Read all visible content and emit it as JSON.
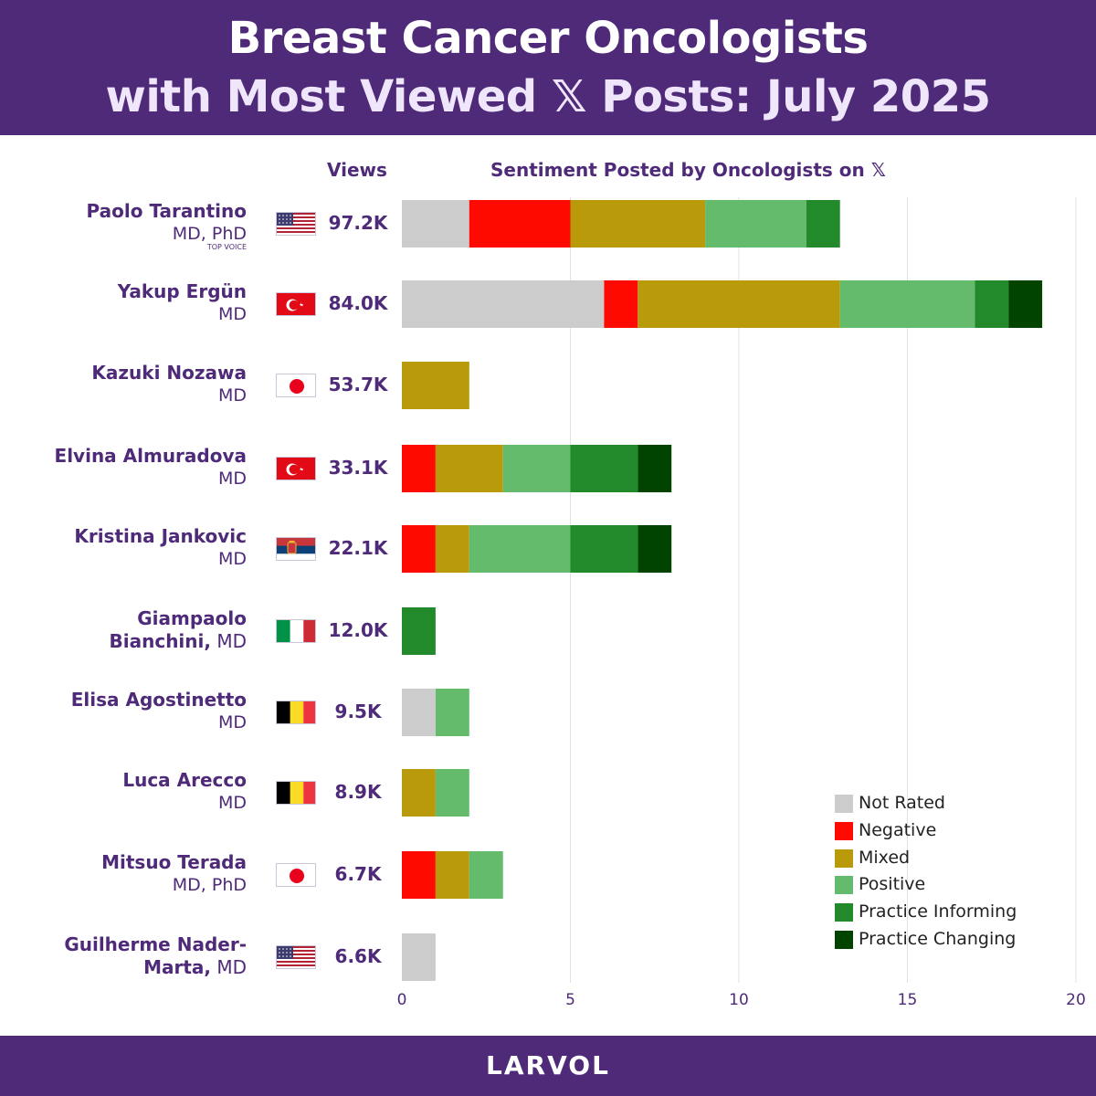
{
  "header": {
    "title_line1": "Breast Cancer Oncologists",
    "title_line2": "with Most Viewed 𝕏 Posts: July 2025"
  },
  "columns": {
    "views": "Views",
    "sentiment": "Sentiment Posted by Oncologists on 𝕏"
  },
  "rows": [
    {
      "line1": "Paolo Tarantino",
      "line2": "MD, PhD",
      "badge": "TOP VOICE",
      "flag": "usa",
      "views": "97.2K"
    },
    {
      "line1": "Yakup Ergün",
      "line2": "MD",
      "flag": "turkey",
      "views": "84.0K"
    },
    {
      "line1": "Kazuki Nozawa",
      "line2": "MD",
      "flag": "japan",
      "views": "53.7K"
    },
    {
      "line1": "Elvina Almuradova",
      "line2": "MD",
      "flag": "turkey",
      "views": "33.1K"
    },
    {
      "line1": "Kristina Jankovic",
      "line2": "MD",
      "flag": "serbia",
      "views": "22.1K"
    },
    {
      "line1": "Giampaolo",
      "line2_bold": "Bianchini,",
      "line2": " MD",
      "flag": "italy",
      "views": "12.0K"
    },
    {
      "line1": "Elisa Agostinetto",
      "line2": "MD",
      "flag": "belgium",
      "views": "9.5K"
    },
    {
      "line1": "Luca Arecco",
      "line2": "MD",
      "flag": "belgium",
      "views": "8.9K"
    },
    {
      "line1": "Mitsuo Terada",
      "line2": "MD, PhD",
      "flag": "japan",
      "views": "6.7K"
    },
    {
      "line1": "Guilherme Nader-",
      "line2_bold": "Marta,",
      "line2": " MD",
      "flag": "usa",
      "views": "6.6K"
    }
  ],
  "chart_data": {
    "type": "bar",
    "orientation": "horizontal",
    "stacked": true,
    "categories": [
      "Paolo Tarantino",
      "Yakup Ergün",
      "Kazuki Nozawa",
      "Elvina Almuradova",
      "Kristina Jankovic",
      "Giampaolo Bianchini",
      "Elisa Agostinetto",
      "Luca Arecco",
      "Mitsuo Terada",
      "Guilherme Nader-Marta"
    ],
    "series": [
      {
        "name": "Not Rated",
        "color": "#cccccc",
        "values": [
          2,
          6,
          0,
          0,
          0,
          0,
          1,
          0,
          0,
          1
        ]
      },
      {
        "name": "Negative",
        "color": "#ff0a00",
        "values": [
          3,
          1,
          0,
          1,
          1,
          0,
          0,
          0,
          1,
          0
        ]
      },
      {
        "name": "Mixed",
        "color": "#b99a0a",
        "values": [
          4,
          6,
          2,
          2,
          1,
          0,
          0,
          1,
          1,
          0
        ]
      },
      {
        "name": "Positive",
        "color": "#64bb6b",
        "values": [
          3,
          4,
          0,
          2,
          3,
          0,
          1,
          1,
          1,
          0
        ]
      },
      {
        "name": "Practice Informing",
        "color": "#238a2c",
        "values": [
          1,
          1,
          0,
          2,
          2,
          1,
          0,
          0,
          0,
          0
        ]
      },
      {
        "name": "Practice Changing",
        "color": "#004400",
        "values": [
          0,
          1,
          0,
          1,
          1,
          0,
          0,
          0,
          0,
          0
        ]
      }
    ],
    "xlim": [
      0,
      20
    ],
    "xticks": [
      "0",
      "5",
      "10",
      "15",
      "20"
    ],
    "grid": true,
    "legend": "bottom-right"
  },
  "footer": {
    "brand": "LARVOL"
  },
  "colors": {
    "brand": "#4e2a78"
  }
}
